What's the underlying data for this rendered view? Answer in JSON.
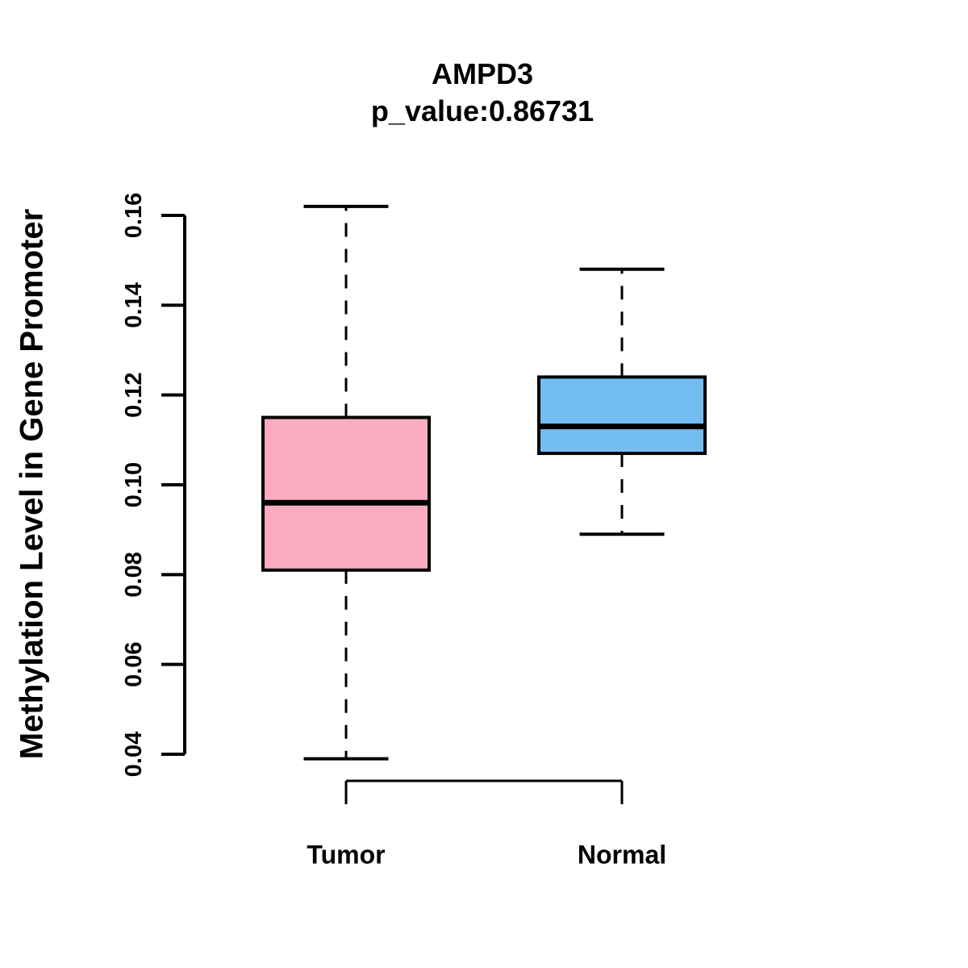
{
  "figure": {
    "background_color": "#ffffff",
    "foreground_color": "#000000"
  },
  "chart_data": {
    "type": "boxplot",
    "title": "AMPD3",
    "subtitle": "p_value:0.86731",
    "ylabel": "Methylation Level in Gene Promoter",
    "xlabel": "",
    "yticks": [
      0.04,
      0.06,
      0.08,
      0.1,
      0.12,
      0.14,
      0.16
    ],
    "ytick_labels": [
      "0.04",
      "0.06",
      "0.08",
      "0.10",
      "0.12",
      "0.14",
      "0.16"
    ],
    "ylim": [
      0.039,
      0.162
    ],
    "grid": false,
    "legend": false,
    "whisker_style": "dashed",
    "categories": [
      "Tumor",
      "Normal"
    ],
    "groups": [
      {
        "label": "Tumor",
        "fill_color": "#FCACC0",
        "whisker_low": 0.039,
        "q1": 0.081,
        "median": 0.096,
        "q3": 0.115,
        "whisker_high": 0.162
      },
      {
        "label": "Normal",
        "fill_color": "#74BDF2",
        "whisker_low": 0.089,
        "q1": 0.107,
        "median": 0.113,
        "q3": 0.124,
        "whisker_high": 0.148
      }
    ]
  }
}
